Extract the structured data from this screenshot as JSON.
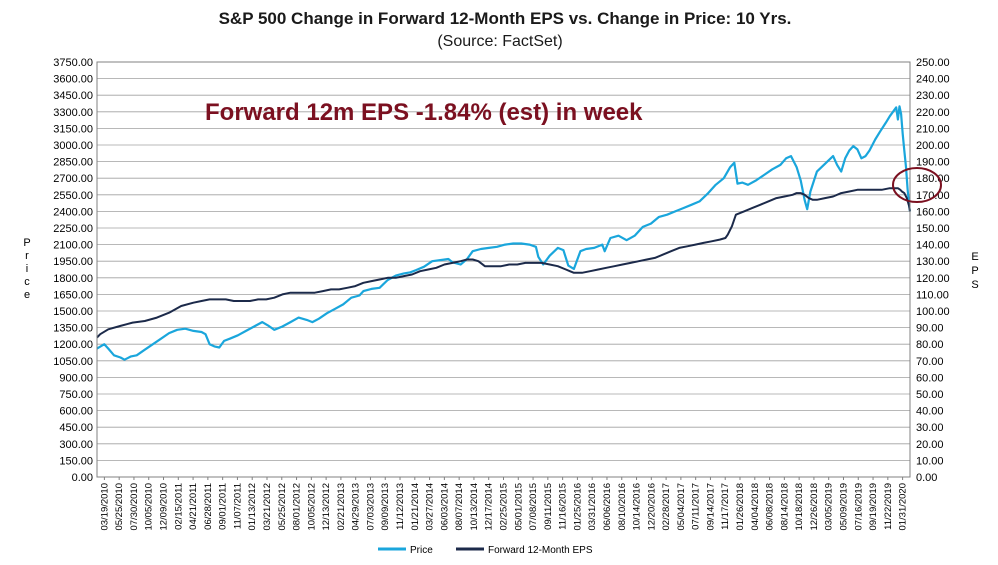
{
  "chart_data": {
    "type": "line",
    "title": "S&P 500 Change in Forward 12-Month EPS vs. Change in Price: 10 Yrs.",
    "subtitle": "(Source: FactSet)",
    "annotation": "Forward 12m EPS -1.84% (est) in week",
    "ylabel_left": "Price",
    "ylabel_right": "EPS",
    "ylim_left": [
      0,
      3750
    ],
    "ylim_right": [
      0,
      250
    ],
    "left_ticks": [
      "0.00",
      "150.00",
      "300.00",
      "450.00",
      "600.00",
      "750.00",
      "900.00",
      "1050.00",
      "1200.00",
      "1350.00",
      "1500.00",
      "1650.00",
      "1800.00",
      "1950.00",
      "2100.00",
      "2250.00",
      "2400.00",
      "2550.00",
      "2700.00",
      "2850.00",
      "3000.00",
      "3150.00",
      "3300.00",
      "3450.00",
      "3600.00",
      "3750.00"
    ],
    "right_ticks": [
      "0.00",
      "10.00",
      "20.00",
      "30.00",
      "40.00",
      "50.00",
      "60.00",
      "70.00",
      "80.00",
      "90.00",
      "100.00",
      "110.00",
      "120.00",
      "130.00",
      "140.00",
      "150.00",
      "160.00",
      "170.00",
      "180.00",
      "190.00",
      "200.00",
      "210.00",
      "220.00",
      "230.00",
      "240.00",
      "250.00"
    ],
    "x_ticks": [
      "03/19/2010",
      "05/25/2010",
      "07/30/2010",
      "10/05/2010",
      "12/09/2010",
      "02/15/2011",
      "04/21/2011",
      "06/28/2011",
      "09/01/2011",
      "11/07/2011",
      "01/13/2012",
      "03/21/2012",
      "05/25/2012",
      "08/01/2012",
      "10/05/2012",
      "12/13/2012",
      "02/21/2013",
      "04/29/2013",
      "07/03/2013",
      "09/09/2013",
      "11/12/2013",
      "01/21/2014",
      "03/27/2014",
      "06/03/2014",
      "08/07/2014",
      "10/13/2014",
      "12/17/2014",
      "02/25/2015",
      "05/01/2015",
      "07/08/2015",
      "09/11/2015",
      "11/16/2015",
      "01/25/2016",
      "03/31/2016",
      "06/06/2016",
      "08/10/2016",
      "10/14/2016",
      "12/20/2016",
      "02/28/2017",
      "05/04/2017",
      "07/11/2017",
      "09/14/2017",
      "11/17/2017",
      "01/26/2018",
      "04/04/2018",
      "06/08/2018",
      "08/14/2018",
      "10/18/2018",
      "12/26/2018",
      "03/05/2019",
      "05/09/2019",
      "07/16/2019",
      "09/19/2019",
      "11/22/2019",
      "01/31/2020"
    ],
    "x_range": [
      2010.21,
      2020.25
    ],
    "series": [
      {
        "name": "Price",
        "axis": "left",
        "color": "#1aa6dc",
        "x": [
          2010.21,
          2010.3,
          2010.35,
          2010.42,
          2010.5,
          2010.55,
          2010.63,
          2010.7,
          2010.8,
          2010.9,
          2011.0,
          2011.1,
          2011.2,
          2011.3,
          2011.4,
          2011.5,
          2011.55,
          2011.6,
          2011.66,
          2011.72,
          2011.78,
          2011.85,
          2011.95,
          2012.05,
          2012.15,
          2012.25,
          2012.32,
          2012.4,
          2012.5,
          2012.6,
          2012.7,
          2012.8,
          2012.87,
          2012.95,
          2013.05,
          2013.15,
          2013.25,
          2013.35,
          2013.45,
          2013.5,
          2013.6,
          2013.7,
          2013.8,
          2013.9,
          2014.0,
          2014.08,
          2014.15,
          2014.25,
          2014.35,
          2014.45,
          2014.55,
          2014.6,
          2014.7,
          2014.78,
          2014.85,
          2014.95,
          2015.05,
          2015.15,
          2015.25,
          2015.35,
          2015.45,
          2015.55,
          2015.63,
          2015.66,
          2015.72,
          2015.8,
          2015.9,
          2015.97,
          2016.03,
          2016.1,
          2016.18,
          2016.25,
          2016.35,
          2016.45,
          2016.48,
          2016.55,
          2016.65,
          2016.75,
          2016.85,
          2016.95,
          2017.05,
          2017.15,
          2017.25,
          2017.35,
          2017.45,
          2017.55,
          2017.65,
          2017.75,
          2017.85,
          2017.95,
          2018.03,
          2018.08,
          2018.12,
          2018.18,
          2018.25,
          2018.35,
          2018.45,
          2018.55,
          2018.65,
          2018.72,
          2018.78,
          2018.85,
          2018.9,
          2018.95,
          2018.98,
          2019.02,
          2019.1,
          2019.2,
          2019.3,
          2019.35,
          2019.4,
          2019.45,
          2019.5,
          2019.55,
          2019.6,
          2019.65,
          2019.7,
          2019.75,
          2019.82,
          2019.88,
          2019.95,
          2020.0,
          2020.05,
          2020.08,
          2020.1,
          2020.12,
          2020.14,
          2020.16,
          2020.18,
          2020.2,
          2020.22,
          2020.24,
          2020.25
        ],
        "values": [
          1160,
          1200,
          1160,
          1100,
          1080,
          1060,
          1090,
          1100,
          1150,
          1200,
          1250,
          1300,
          1330,
          1340,
          1320,
          1310,
          1290,
          1200,
          1180,
          1170,
          1230,
          1250,
          1280,
          1320,
          1360,
          1400,
          1370,
          1330,
          1360,
          1400,
          1440,
          1420,
          1400,
          1430,
          1480,
          1520,
          1560,
          1620,
          1640,
          1680,
          1700,
          1710,
          1780,
          1820,
          1840,
          1850,
          1870,
          1900,
          1950,
          1960,
          1970,
          1940,
          1920,
          1970,
          2040,
          2060,
          2070,
          2080,
          2100,
          2110,
          2110,
          2100,
          2080,
          1990,
          1920,
          2000,
          2070,
          2050,
          1910,
          1880,
          2040,
          2060,
          2070,
          2100,
          2040,
          2160,
          2180,
          2140,
          2180,
          2260,
          2290,
          2350,
          2370,
          2400,
          2430,
          2460,
          2490,
          2560,
          2640,
          2700,
          2800,
          2840,
          2650,
          2660,
          2640,
          2680,
          2730,
          2780,
          2820,
          2880,
          2900,
          2800,
          2680,
          2500,
          2420,
          2580,
          2760,
          2830,
          2900,
          2820,
          2760,
          2880,
          2950,
          2990,
          2960,
          2880,
          2900,
          2950,
          3050,
          3120,
          3200,
          3260,
          3310,
          3340,
          3230,
          3350,
          3280,
          3100,
          2950,
          2800,
          2600,
          2450,
          2400
        ]
      },
      {
        "name": "Forward 12-Month EPS",
        "axis": "right",
        "color": "#1c2a4a",
        "x": [
          2010.21,
          2010.25,
          2010.35,
          2010.5,
          2010.65,
          2010.8,
          2010.95,
          2011.1,
          2011.25,
          2011.4,
          2011.5,
          2011.6,
          2011.7,
          2011.8,
          2011.9,
          2012.0,
          2012.1,
          2012.2,
          2012.3,
          2012.4,
          2012.5,
          2012.6,
          2012.7,
          2012.8,
          2012.9,
          2013.0,
          2013.1,
          2013.2,
          2013.3,
          2013.4,
          2013.5,
          2013.6,
          2013.7,
          2013.8,
          2013.9,
          2014.0,
          2014.1,
          2014.2,
          2014.3,
          2014.4,
          2014.5,
          2014.6,
          2014.7,
          2014.78,
          2014.85,
          2014.92,
          2015.0,
          2015.1,
          2015.2,
          2015.3,
          2015.4,
          2015.5,
          2015.6,
          2015.7,
          2015.8,
          2015.9,
          2016.0,
          2016.05,
          2016.1,
          2016.2,
          2016.3,
          2016.4,
          2016.5,
          2016.6,
          2016.7,
          2016.8,
          2016.9,
          2017.0,
          2017.1,
          2017.2,
          2017.3,
          2017.4,
          2017.5,
          2017.6,
          2017.7,
          2017.8,
          2017.9,
          2017.97,
          2018.0,
          2018.02,
          2018.05,
          2018.1,
          2018.2,
          2018.3,
          2018.4,
          2018.5,
          2018.6,
          2018.7,
          2018.8,
          2018.85,
          2018.9,
          2018.95,
          2019.0,
          2019.05,
          2019.1,
          2019.2,
          2019.3,
          2019.4,
          2019.5,
          2019.6,
          2019.7,
          2019.8,
          2019.9,
          2020.0,
          2020.05,
          2020.1,
          2020.13,
          2020.15,
          2020.18,
          2020.21,
          2020.24,
          2020.25
        ],
        "values": [
          84,
          86,
          89,
          91,
          93,
          94,
          96,
          99,
          103,
          105,
          106,
          107,
          107,
          107,
          106,
          106,
          106,
          107,
          107,
          108,
          110,
          111,
          111,
          111,
          111,
          112,
          113,
          113,
          114,
          115,
          117,
          118,
          119,
          120,
          120,
          121,
          122,
          124,
          125,
          126,
          128,
          129,
          130,
          131,
          131,
          130,
          127,
          127,
          127,
          128,
          128,
          129,
          129,
          129,
          128,
          127,
          125,
          124,
          123,
          123,
          124,
          125,
          126,
          127,
          128,
          129,
          130,
          131,
          132,
          134,
          136,
          138,
          139,
          140,
          141,
          142,
          143,
          144,
          146,
          148,
          151,
          158,
          160,
          162,
          164,
          166,
          168,
          169,
          170,
          171,
          171,
          170,
          168,
          167,
          167,
          168,
          169,
          171,
          172,
          173,
          173,
          173,
          173,
          174,
          174,
          174,
          173,
          172,
          171,
          168,
          163,
          160
        ]
      }
    ],
    "legend": [
      "Price",
      "Forward 12-Month EPS"
    ]
  }
}
